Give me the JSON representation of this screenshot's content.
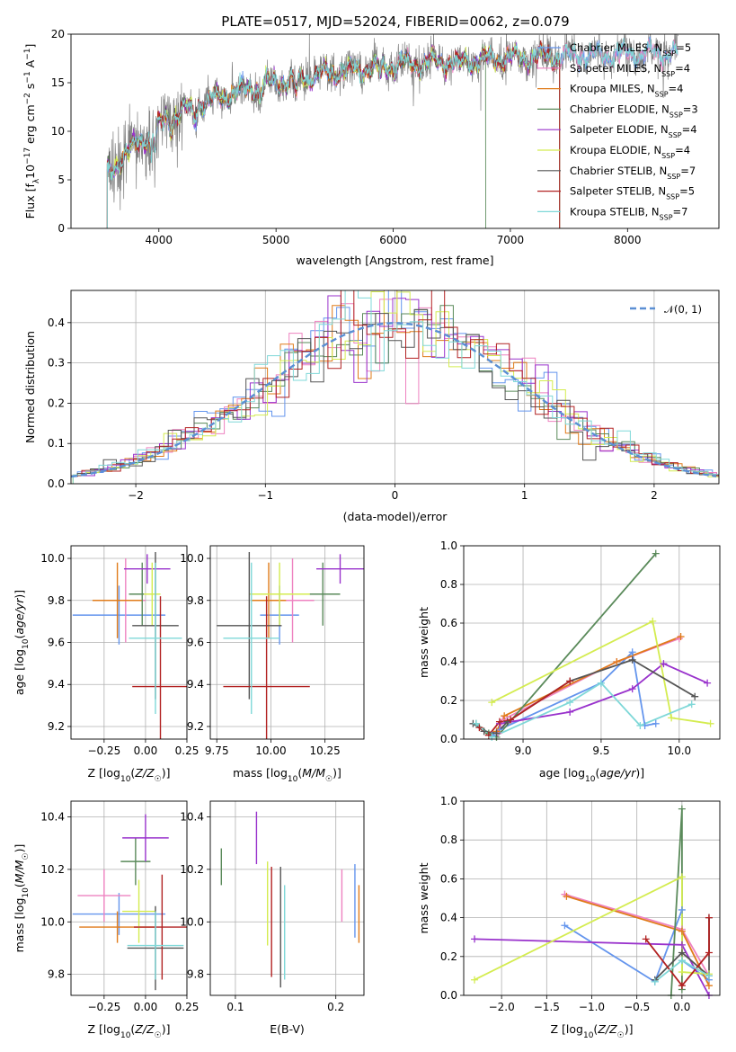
{
  "figure": {
    "title": "PLATE=0517, MJD=52024, FIBERID=0062, z=0.079",
    "models": [
      {
        "name": "Chabrier MILES, N$_{SSP}$=5",
        "label": "Chabrier MILES, N",
        "sub": "SSP",
        "suffix": "=5",
        "color": "#6495ed"
      },
      {
        "name": "Salpeter MILES, N$_{SSP}$=4",
        "label": "Salpeter MILES, N",
        "sub": "SSP",
        "suffix": "=4",
        "color": "#ee82c0"
      },
      {
        "name": "Kroupa MILES, N$_{SSP}$=4",
        "label": "Kroupa MILES, N",
        "sub": "SSP",
        "suffix": "=4",
        "color": "#e07b1a"
      },
      {
        "name": "Chabrier ELODIE, N$_{SSP}$=3",
        "label": "Chabrier ELODIE, N",
        "sub": "SSP",
        "suffix": "=3",
        "color": "#5a8a5a"
      },
      {
        "name": "Salpeter ELODIE, N$_{SSP}$=4",
        "label": "Salpeter ELODIE, N",
        "sub": "SSP",
        "suffix": "=4",
        "color": "#9932cc"
      },
      {
        "name": "Kroupa ELODIE, N$_{SSP}$=4",
        "label": "Kroupa ELODIE, N",
        "sub": "SSP",
        "suffix": "=4",
        "color": "#d4ec50"
      },
      {
        "name": "Chabrier STELIB, N$_{SSP}$=7",
        "label": "Chabrier STELIB, N",
        "sub": "SSP",
        "suffix": "=7",
        "color": "#555555"
      },
      {
        "name": "Salpeter STELIB, N$_{SSP}$=5",
        "label": "Salpeter STELIB, N",
        "sub": "SSP",
        "suffix": "=5",
        "color": "#b22222"
      },
      {
        "name": "Kroupa STELIB, N$_{SSP}$=7",
        "label": "Kroupa STELIB, N",
        "sub": "SSP",
        "suffix": "=7",
        "color": "#7fd8d8"
      }
    ]
  },
  "chart_data": [
    {
      "id": "spectrum",
      "type": "line",
      "title": "PLATE=0517, MJD=52024, FIBERID=0062, z=0.079",
      "xlabel": "wavelength [Angstrom, rest frame]",
      "ylabel": "Flux [f_λ10^-17 erg cm^-2 s^-1 A^-1]",
      "xlim": [
        3250,
        8780
      ],
      "ylim": [
        0,
        20
      ],
      "xticks": [
        4000,
        5000,
        6000,
        7000,
        8000
      ],
      "yticks": [
        0,
        5,
        10,
        15,
        20
      ],
      "data_color": "#808080",
      "continuum_x": [
        3550,
        3600,
        3700,
        3800,
        3900,
        4000,
        4100,
        4200,
        4400,
        4600,
        4800,
        5000,
        5200,
        5400,
        5600,
        5800,
        6000,
        6200,
        6400,
        6600,
        6800,
        7000,
        7200,
        7400,
        7600,
        7800,
        8000,
        8200,
        8400
      ],
      "continuum_y": [
        5.5,
        6,
        7.5,
        8.5,
        9.5,
        10.5,
        11.5,
        12.2,
        13,
        13.8,
        14.5,
        15,
        15.5,
        15.9,
        16.2,
        16.5,
        16.8,
        17,
        17.1,
        17.2,
        17.4,
        17.5,
        17.6,
        17.7,
        17.8,
        17.9,
        18,
        18,
        18.1
      ],
      "model_extent": [
        [
          3560,
          8430
        ],
        [
          3560,
          8430
        ],
        [
          3560,
          7420
        ],
        [
          3560,
          6790
        ],
        [
          3560,
          7420
        ],
        [
          3560,
          7420
        ],
        [
          3560,
          7420
        ],
        [
          3560,
          7420
        ],
        [
          3560,
          8430
        ]
      ]
    },
    {
      "id": "residuals",
      "type": "histogram",
      "xlabel": "(data-model)/error",
      "ylabel": "Normed distribution",
      "xlim": [
        -2.5,
        2.5
      ],
      "ylim": [
        0,
        0.48
      ],
      "xticks": [
        -2,
        -1,
        0,
        1,
        2
      ],
      "yticks": [
        0.0,
        0.1,
        0.2,
        0.3,
        0.4
      ],
      "bin_width": 0.1,
      "reference": {
        "label": "𝒩(0, 1)",
        "mean": 0,
        "sigma": 1,
        "color": "#5b8fd4"
      }
    },
    {
      "id": "age-vs-Z",
      "type": "errorbar",
      "xlabel": "Z [log10(Z/Z☉)]",
      "ylabel": "age [log10(age/yr)]",
      "xlim": [
        -0.45,
        0.25
      ],
      "ylim": [
        9.14,
        10.06
      ],
      "xticks": [
        -0.25,
        0.0,
        0.25
      ],
      "yticks": [
        9.2,
        9.4,
        9.6,
        9.8,
        10.0
      ],
      "points": [
        {
          "x": -0.16,
          "xerr": 0.28,
          "y": 9.73,
          "yerr": 0.14
        },
        {
          "x": -0.12,
          "xerr": 0.12,
          "y": 9.8,
          "yerr": 0.2
        },
        {
          "x": -0.17,
          "xerr": 0.15,
          "y": 9.8,
          "yerr": 0.18
        },
        {
          "x": -0.02,
          "xerr": 0.08,
          "y": 9.83,
          "yerr": 0.15
        },
        {
          "x": 0.01,
          "xerr": 0.14,
          "y": 9.95,
          "yerr": 0.07
        },
        {
          "x": 0.04,
          "xerr": 0.05,
          "y": 9.83,
          "yerr": 0.15
        },
        {
          "x": 0.06,
          "xerr": 0.14,
          "y": 9.68,
          "yerr": 0.35
        },
        {
          "x": 0.09,
          "xerr": 0.17,
          "y": 9.39,
          "yerr": 0.43
        },
        {
          "x": 0.06,
          "xerr": 0.16,
          "y": 9.62,
          "yerr": 0.36
        }
      ]
    },
    {
      "id": "age-vs-mass",
      "type": "errorbar",
      "xlabel": "mass [log10(M/M☉)]",
      "ylabel": "",
      "xlim": [
        9.72,
        10.43
      ],
      "ylim": [
        9.14,
        10.06
      ],
      "xticks": [
        9.75,
        10.0,
        10.25
      ],
      "yticks": [
        9.2,
        9.4,
        9.6,
        9.8,
        10.0
      ],
      "points": [
        {
          "x": 10.04,
          "xerr": 0.09,
          "y": 9.73,
          "yerr": 0.14
        },
        {
          "x": 10.1,
          "xerr": 0.1,
          "y": 9.8,
          "yerr": 0.2
        },
        {
          "x": 9.99,
          "xerr": 0.08,
          "y": 9.8,
          "yerr": 0.18
        },
        {
          "x": 10.24,
          "xerr": 0.08,
          "y": 9.83,
          "yerr": 0.15
        },
        {
          "x": 10.32,
          "xerr": 0.11,
          "y": 9.95,
          "yerr": 0.07
        },
        {
          "x": 10.04,
          "xerr": 0.14,
          "y": 9.83,
          "yerr": 0.15
        },
        {
          "x": 9.9,
          "xerr": 0.15,
          "y": 9.68,
          "yerr": 0.35
        },
        {
          "x": 9.98,
          "xerr": 0.2,
          "y": 9.39,
          "yerr": 0.43
        },
        {
          "x": 9.91,
          "xerr": 0.13,
          "y": 9.62,
          "yerr": 0.36
        }
      ]
    },
    {
      "id": "weight-vs-age",
      "type": "line",
      "xlabel": "age [log10(age/yr)]",
      "ylabel": "mass weight",
      "xlim": [
        8.62,
        10.26
      ],
      "ylim": [
        0,
        1
      ],
      "xticks": [
        9.0,
        9.5,
        10.0
      ],
      "yticks": [
        0.0,
        0.2,
        0.4,
        0.6,
        0.8,
        1.0
      ],
      "series": [
        {
          "x": [
            8.8,
            8.85,
            9.5,
            9.7,
            9.78,
            9.85
          ],
          "y": [
            0.02,
            0.05,
            0.29,
            0.45,
            0.07,
            0.08
          ]
        },
        {
          "x": [
            8.84,
            8.87,
            9.6,
            10.0
          ],
          "y": [
            0.03,
            0.1,
            0.4,
            0.52
          ]
        },
        {
          "x": [
            8.83,
            8.88,
            9.6,
            10.01
          ],
          "y": [
            0.04,
            0.12,
            0.4,
            0.53
          ]
        },
        {
          "x": [
            8.7,
            8.78,
            8.83,
            9.85
          ],
          "y": [
            0.08,
            0.03,
            0.01,
            0.96
          ]
        },
        {
          "x": [
            8.85,
            9.3,
            9.7,
            9.9,
            10.18
          ],
          "y": [
            0.08,
            0.14,
            0.26,
            0.39,
            0.29
          ]
        },
        {
          "x": [
            8.8,
            9.83,
            9.95,
            10.2
          ],
          "y": [
            0.19,
            0.61,
            0.11,
            0.08
          ]
        },
        {
          "x": [
            8.68,
            8.75,
            8.83,
            8.9,
            9.3,
            9.7,
            10.1
          ],
          "y": [
            0.08,
            0.04,
            0.03,
            0.09,
            0.3,
            0.41,
            0.22
          ]
        },
        {
          "x": [
            8.72,
            8.78,
            8.85,
            8.92,
            9.3
          ],
          "y": [
            0.06,
            0.02,
            0.09,
            0.1,
            0.3
          ]
        },
        {
          "x": [
            8.7,
            8.8,
            9.3,
            9.5,
            9.75,
            10.08
          ],
          "y": [
            0.08,
            0.01,
            0.19,
            0.29,
            0.07,
            0.18
          ]
        }
      ]
    },
    {
      "id": "mass-vs-Z",
      "type": "errorbar",
      "xlabel": "Z [log10(Z/Z☉)]",
      "ylabel": "mass [log10(M/M☉)]",
      "xlim": [
        -0.45,
        0.25
      ],
      "ylim": [
        9.72,
        10.46
      ],
      "xticks": [
        -0.25,
        0.0,
        0.25
      ],
      "yticks": [
        9.8,
        10.0,
        10.2,
        10.4
      ],
      "points": [
        {
          "x": -0.16,
          "xerr": 0.28,
          "y": 10.03,
          "yerr": 0.08
        },
        {
          "x": -0.25,
          "xerr": 0.16,
          "y": 10.1,
          "yerr": 0.1
        },
        {
          "x": -0.17,
          "xerr": 0.23,
          "y": 9.98,
          "yerr": 0.06
        },
        {
          "x": -0.06,
          "xerr": 0.09,
          "y": 10.23,
          "yerr": 0.09
        },
        {
          "x": 0.0,
          "xerr": 0.14,
          "y": 10.32,
          "yerr": 0.09
        },
        {
          "x": -0.04,
          "xerr": 0.1,
          "y": 10.04,
          "yerr": 0.12
        },
        {
          "x": 0.06,
          "xerr": 0.17,
          "y": 9.9,
          "yerr": 0.16
        },
        {
          "x": 0.1,
          "xerr": 0.17,
          "y": 9.98,
          "yerr": 0.2
        },
        {
          "x": 0.06,
          "xerr": 0.17,
          "y": 9.91,
          "yerr": 0.13
        }
      ]
    },
    {
      "id": "mass-vs-EBV",
      "type": "errorbar",
      "xlabel": "E(B-V)",
      "ylabel": "",
      "xlim": [
        0.075,
        0.228
      ],
      "ylim": [
        9.72,
        10.46
      ],
      "xticks": [
        0.1,
        0.2
      ],
      "yticks": [
        9.8,
        10.0,
        10.2,
        10.4
      ],
      "points": [
        {
          "x": 0.219,
          "xerr": 0,
          "y": 10.08,
          "yerr": 0.14
        },
        {
          "x": 0.206,
          "xerr": 0,
          "y": 10.1,
          "yerr": 0.1
        },
        {
          "x": 0.223,
          "xerr": 0,
          "y": 10.03,
          "yerr": 0.11
        },
        {
          "x": 0.086,
          "xerr": 0,
          "y": 10.21,
          "yerr": 0.07
        },
        {
          "x": 0.121,
          "xerr": 0,
          "y": 10.32,
          "yerr": 0.1
        },
        {
          "x": 0.132,
          "xerr": 0,
          "y": 10.07,
          "yerr": 0.16
        },
        {
          "x": 0.145,
          "xerr": 0,
          "y": 9.98,
          "yerr": 0.23
        },
        {
          "x": 0.136,
          "xerr": 0,
          "y": 10.0,
          "yerr": 0.21
        },
        {
          "x": 0.149,
          "xerr": 0,
          "y": 9.96,
          "yerr": 0.18
        }
      ]
    },
    {
      "id": "weight-vs-Z",
      "type": "line",
      "xlabel": "Z [log10(Z/Z☉)]",
      "ylabel": "mass weight",
      "xlim": [
        -2.42,
        0.42
      ],
      "ylim": [
        0,
        1
      ],
      "xticks": [
        -2.0,
        -1.5,
        -1.0,
        -0.5,
        0.0
      ],
      "yticks": [
        0.0,
        0.2,
        0.4,
        0.6,
        0.8,
        1.0
      ],
      "series": [
        {
          "x": [
            -1.3,
            -0.3,
            0.0,
            0.0,
            0.3
          ],
          "y": [
            0.36,
            0.07,
            0.44,
            0.18,
            0.08
          ]
        },
        {
          "x": [
            -1.3,
            0.0,
            0.3
          ],
          "y": [
            0.52,
            0.34,
            0.1
          ]
        },
        {
          "x": [
            -1.28,
            0.0,
            0.3
          ],
          "y": [
            0.51,
            0.33,
            0.05
          ]
        },
        {
          "x": [
            -0.12,
            0.0,
            0.0
          ],
          "y": [
            0.0,
            0.96,
            0.03
          ]
        },
        {
          "x": [
            -2.3,
            0.0,
            0.3
          ],
          "y": [
            0.29,
            0.26,
            0.0
          ]
        },
        {
          "x": [
            -2.3,
            0.0,
            0.0,
            0.3
          ],
          "y": [
            0.08,
            0.61,
            0.12,
            0.11
          ]
        },
        {
          "x": [
            -0.3,
            0.0,
            0.3,
            0.3
          ],
          "y": [
            0.08,
            0.22,
            0.1,
            0.4
          ]
        },
        {
          "x": [
            -0.4,
            0.0,
            0.3,
            0.3
          ],
          "y": [
            0.29,
            0.05,
            0.22,
            0.4
          ]
        },
        {
          "x": [
            -0.3,
            0.0,
            0.3
          ],
          "y": [
            0.07,
            0.18,
            0.1
          ]
        }
      ]
    }
  ]
}
